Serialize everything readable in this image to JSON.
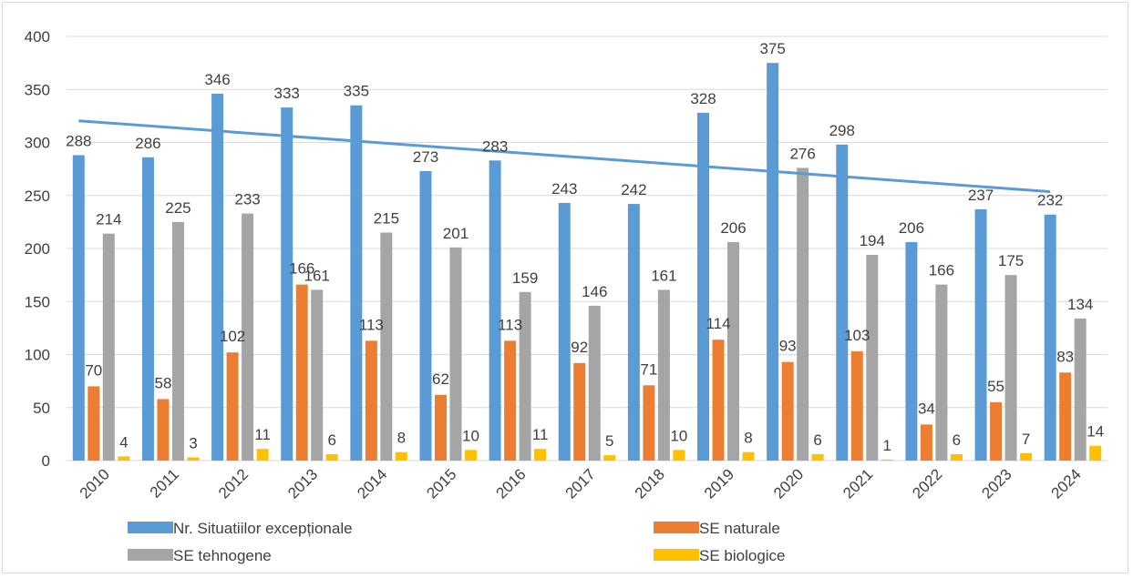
{
  "chart_data": {
    "type": "bar",
    "title": "",
    "xlabel": "",
    "ylabel": "",
    "ylim": [
      0,
      400
    ],
    "yticks": [
      0,
      50,
      100,
      150,
      200,
      250,
      300,
      350,
      400
    ],
    "grid": true,
    "legend_position": "bottom",
    "categories": [
      "2010",
      "2011",
      "2012",
      "2013",
      "2014",
      "2015",
      "2016",
      "2017",
      "2018",
      "2019",
      "2020",
      "2021",
      "2022",
      "2023",
      "2024"
    ],
    "series": [
      {
        "name": "Nr. Situatiilor excepționale",
        "color": "#5b9bd5",
        "values": [
          288,
          286,
          346,
          333,
          335,
          273,
          283,
          243,
          242,
          328,
          375,
          298,
          206,
          237,
          232
        ]
      },
      {
        "name": "SE naturale",
        "color": "#ed7d31",
        "values": [
          70,
          58,
          102,
          166,
          113,
          62,
          113,
          92,
          71,
          114,
          93,
          103,
          34,
          55,
          83
        ]
      },
      {
        "name": "SE tehnogene",
        "color": "#a5a5a5",
        "values": [
          214,
          225,
          233,
          161,
          215,
          201,
          159,
          146,
          161,
          206,
          276,
          194,
          166,
          175,
          134
        ]
      },
      {
        "name": "SE biologice",
        "color": "#ffc000",
        "values": [
          4,
          3,
          11,
          6,
          8,
          10,
          11,
          5,
          10,
          8,
          6,
          1,
          6,
          7,
          14
        ]
      }
    ],
    "trendline": {
      "series": "Nr. Situatiilor excepționale",
      "type": "linear",
      "color": "#5b9bd5"
    }
  }
}
